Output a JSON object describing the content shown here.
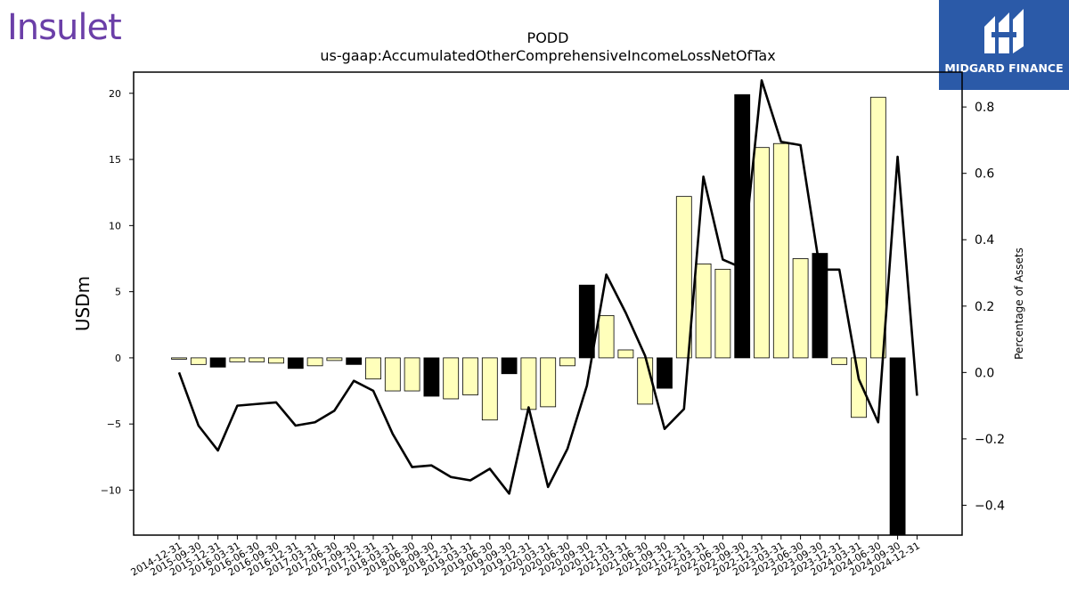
{
  "logos": {
    "left": "Insulet",
    "right": "MIDGARD FINANCE"
  },
  "chart_data": {
    "type": "bar",
    "title": "PODD",
    "subtitle": "us-gaap:AccumulatedOtherComprehensiveIncomeLossNetOfTax",
    "ylabel": "USDm",
    "y2label": "Percentage of Assets",
    "ylim": [
      -13.4,
      21.6
    ],
    "y2lim": [
      -0.49,
      0.905
    ],
    "yticks": [
      -10,
      -5,
      0,
      5,
      10,
      15,
      20
    ],
    "y2ticks": [
      -0.4,
      -0.2,
      0.0,
      0.2,
      0.4,
      0.6,
      0.8
    ],
    "grid": false,
    "categories": [
      "2014-12-31",
      "2015-09-30",
      "2015-12-31",
      "2016-03-31",
      "2016-06-30",
      "2016-09-30",
      "2016-12-31",
      "2017-03-31",
      "2017-06-30",
      "2017-09-30",
      "2017-12-31",
      "2018-03-31",
      "2018-06-30",
      "2018-09-30",
      "2018-12-31",
      "2019-03-31",
      "2019-06-30",
      "2019-09-30",
      "2019-12-31",
      "2020-03-31",
      "2020-06-30",
      "2020-09-30",
      "2020-12-31",
      "2021-03-31",
      "2021-06-30",
      "2021-09-30",
      "2021-12-31",
      "2022-03-31",
      "2022-06-30",
      "2022-09-30",
      "2022-12-31",
      "2023-03-31",
      "2023-06-30",
      "2023-09-30",
      "2023-12-31",
      "2024-03-31",
      "2024-06-30",
      "2024-09-30",
      "2024-12-31"
    ],
    "values": [
      -0.1,
      -0.5,
      -0.7,
      -0.3,
      -0.3,
      -0.4,
      -0.8,
      -0.6,
      -0.2,
      -0.5,
      -1.6,
      -2.5,
      -2.5,
      -2.9,
      -3.1,
      -2.8,
      -4.7,
      -1.2,
      -3.9,
      -3.7,
      -0.6,
      5.5,
      3.2,
      0.6,
      -3.5,
      -2.3,
      12.2,
      7.1,
      6.7,
      19.9,
      15.9,
      16.2,
      7.5,
      7.9,
      -0.5,
      -4.5,
      19.7,
      -13.4,
      0
    ],
    "highlighted": [
      false,
      false,
      true,
      false,
      false,
      false,
      true,
      false,
      false,
      true,
      false,
      false,
      false,
      true,
      false,
      false,
      false,
      true,
      false,
      false,
      false,
      true,
      false,
      false,
      false,
      true,
      false,
      false,
      false,
      true,
      false,
      false,
      false,
      true,
      false,
      false,
      false,
      true,
      false
    ],
    "bar_color": "#ffffbb",
    "highlight_color": "#000000",
    "line_series": {
      "name": "Percentage of Assets",
      "values": [
        0.0,
        -0.16,
        -0.235,
        -0.1,
        -0.095,
        -0.09,
        -0.16,
        -0.15,
        -0.115,
        -0.025,
        -0.055,
        -0.185,
        -0.285,
        -0.28,
        -0.315,
        -0.325,
        -0.29,
        -0.365,
        -0.105,
        -0.345,
        -0.23,
        -0.04,
        0.295,
        0.18,
        0.05,
        -0.17,
        -0.11,
        0.59,
        0.34,
        0.315,
        0.88,
        0.695,
        0.685,
        0.31,
        0.31,
        -0.02,
        -0.15,
        0.65,
        -0.07
      ],
      "color": "#000000"
    }
  }
}
